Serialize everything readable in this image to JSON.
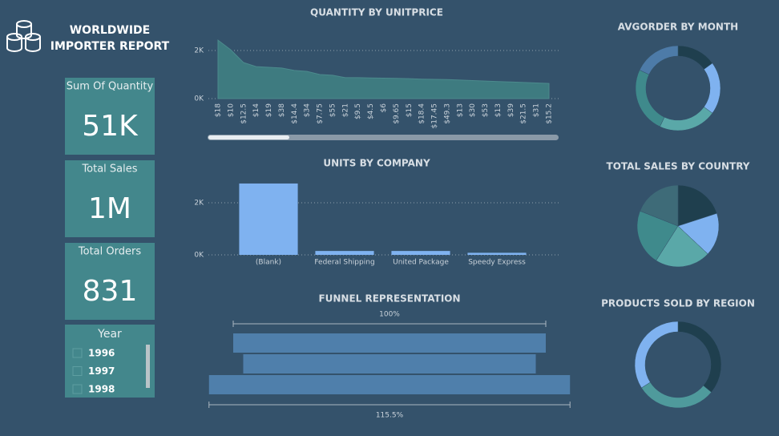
{
  "header": {
    "title_lines": [
      "WORLDWIDE",
      "IMPORTER REPORT"
    ]
  },
  "cards": [
    {
      "label": "Sum Of Quantity",
      "value": "51K"
    },
    {
      "label": "Total Sales",
      "value": "1M"
    },
    {
      "label": "Total Orders",
      "value": "831"
    }
  ],
  "slicer": {
    "title": "Year",
    "items": [
      "1996",
      "1997",
      "1998"
    ]
  },
  "chart_data": [
    {
      "type": "area",
      "title": "QUANTITY BY UNITPRICE",
      "categories": [
        "$18",
        "$10",
        "$12.5",
        "$14",
        "$19",
        "$38",
        "$14.4",
        "$34",
        "$7.75",
        "$55",
        "$21",
        "$9.5",
        "$4.5",
        "$6",
        "$9.65",
        "$15",
        "$18.4",
        "$17.45",
        "$49.3",
        "$13",
        "$30",
        "$53",
        "$13",
        "$39",
        "$21.5",
        "$31",
        "$15.2"
      ],
      "values": [
        2430,
        2030,
        1500,
        1330,
        1300,
        1270,
        1170,
        1130,
        1000,
        970,
        870,
        870,
        860,
        850,
        840,
        830,
        810,
        800,
        790,
        770,
        750,
        730,
        710,
        690,
        670,
        650,
        630
      ],
      "color": "#3e7b80",
      "ylim": [
        0,
        2600
      ],
      "yticks": [
        {
          "value": 0,
          "label": "0K"
        },
        {
          "value": 2000,
          "label": "2K"
        }
      ],
      "grid": true
    },
    {
      "type": "bar",
      "title": "UNITS BY COMPANY",
      "categories": [
        "(Blank)",
        "Federal Shipping",
        "United Package",
        "Speedy Express"
      ],
      "values": [
        2740,
        150,
        150,
        80
      ],
      "color": "#7fb2f0",
      "ylim": [
        0,
        3000
      ],
      "yticks": [
        {
          "value": 0,
          "label": "0K"
        },
        {
          "value": 2000,
          "label": "2K"
        }
      ],
      "grid": true
    },
    {
      "type": "funnel",
      "title": "FUNNEL REPRESENTATION",
      "values": [
        100,
        93.6,
        115.5
      ],
      "value_labels": [
        "100%",
        null,
        "115.5%"
      ],
      "color": "#4f7fab"
    },
    {
      "type": "donut",
      "title": "AVGORDER BY MONTH",
      "values": [
        15,
        20,
        22,
        25,
        18
      ],
      "colors": [
        "#1f3f4e",
        "#7fb2f0",
        "#5aa8a8",
        "#3f8a8c",
        "#4d7ba8"
      ]
    },
    {
      "type": "pie",
      "title": "TOTAL SALES BY COUNTRY",
      "values": [
        20,
        17,
        22,
        22,
        19
      ],
      "colors": [
        "#1f3f4e",
        "#7fb2f0",
        "#5aa8a8",
        "#3f8a8c",
        "#3e6b78"
      ]
    },
    {
      "type": "donut",
      "title": "PRODUCTS SOLD BY REGION",
      "values": [
        36,
        30,
        34
      ],
      "colors": [
        "#1f3f4e",
        "#4f9a9c",
        "#7fb2f0"
      ]
    }
  ]
}
